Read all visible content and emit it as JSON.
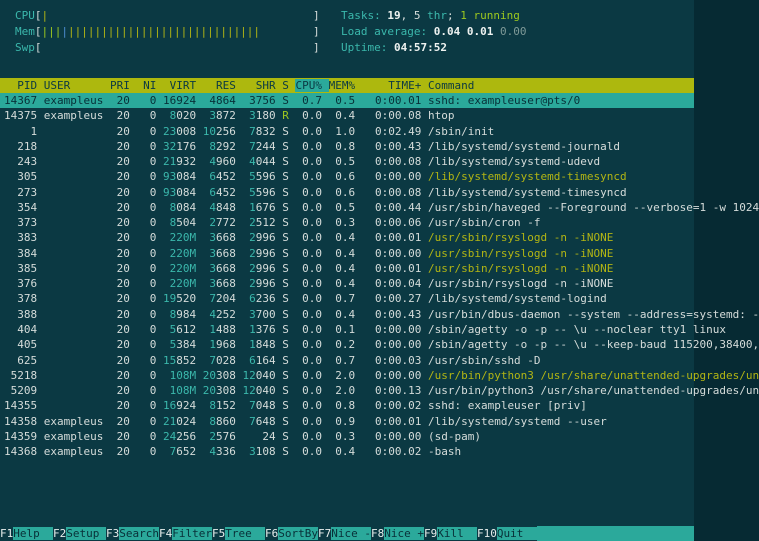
{
  "colors": {
    "background": "#0b3943",
    "foreground": "#d5dcda",
    "accent_cyan": "#3bb8ac",
    "selection_bg": "#2ba99b",
    "header_bg": "#adb80e",
    "thread_yellow": "#b2b514",
    "running_green": "#9dc81f",
    "buffer_blue": "#4d8fd1"
  },
  "meter_width": 41,
  "meters": [
    {
      "name": "CPU",
      "pipes": [
        {
          "color": "yellow",
          "n": 1
        }
      ]
    },
    {
      "name": "Mem",
      "pipes": [
        {
          "color": "green",
          "n": 3
        },
        {
          "color": "blue",
          "n": 1
        },
        {
          "color": "yellow",
          "n": 29
        }
      ]
    },
    {
      "name": "Swp",
      "pipes": []
    }
  ],
  "stats": [
    {
      "id": "tasks",
      "segments": [
        [
          "cyan",
          "Tasks: "
        ],
        [
          "b",
          "19"
        ],
        [
          "fg",
          ", "
        ],
        [
          "fg",
          "5"
        ],
        [
          "cyan",
          " thr"
        ],
        [
          "fg",
          "; "
        ],
        [
          "green",
          "1 running"
        ]
      ]
    },
    {
      "id": "load-average",
      "segments": [
        [
          "cyan",
          "Load average: "
        ],
        [
          "b",
          "0.04"
        ],
        [
          "fg",
          " "
        ],
        [
          "b",
          "0.01"
        ],
        [
          "fg",
          " "
        ],
        [
          "dim",
          "0.00"
        ]
      ]
    },
    {
      "id": "uptime",
      "segments": [
        [
          "cyan",
          "Uptime: "
        ],
        [
          "b",
          "04:57:52"
        ]
      ]
    }
  ],
  "table": {
    "columns": [
      "PID",
      "USER",
      "PRI",
      "NI",
      "VIRT",
      "RES",
      "SHR",
      "S",
      "CPU%",
      "MEM%",
      "TIME+",
      "Command"
    ],
    "sort_column": "CPU%",
    "rows": [
      {
        "pid": "14367",
        "user": "exampleus",
        "pri": "20",
        "ni": "0",
        "virt": "16924",
        "res": "4864",
        "shr": "3756",
        "s": "S",
        "cpu": "0.7",
        "mem": "0.5",
        "time": "0:00.01",
        "cmd": "sshd: exampleuser@pts/0",
        "thread": false,
        "selected": true
      },
      {
        "pid": "14375",
        "user": "exampleus",
        "pri": "20",
        "ni": "0",
        "virt": "8020",
        "res": "3872",
        "shr": "3180",
        "s": "R",
        "cpu": "0.0",
        "mem": "0.4",
        "time": "0:00.08",
        "cmd": "htop",
        "thread": false,
        "selected": false
      },
      {
        "pid": "1",
        "user": "",
        "pri": "20",
        "ni": "0",
        "virt": "23008",
        "res": "10256",
        "shr": "7832",
        "s": "S",
        "cpu": "0.0",
        "mem": "1.0",
        "time": "0:02.49",
        "cmd": "/sbin/init",
        "thread": false,
        "selected": false
      },
      {
        "pid": "218",
        "user": "",
        "pri": "20",
        "ni": "0",
        "virt": "32176",
        "res": "8292",
        "shr": "7244",
        "s": "S",
        "cpu": "0.0",
        "mem": "0.8",
        "time": "0:00.43",
        "cmd": "/lib/systemd/systemd-journald",
        "thread": false,
        "selected": false
      },
      {
        "pid": "243",
        "user": "",
        "pri": "20",
        "ni": "0",
        "virt": "21932",
        "res": "4960",
        "shr": "4044",
        "s": "S",
        "cpu": "0.0",
        "mem": "0.5",
        "time": "0:00.08",
        "cmd": "/lib/systemd/systemd-udevd",
        "thread": false,
        "selected": false
      },
      {
        "pid": "305",
        "user": "",
        "pri": "20",
        "ni": "0",
        "virt": "93084",
        "res": "6452",
        "shr": "5596",
        "s": "S",
        "cpu": "0.0",
        "mem": "0.6",
        "time": "0:00.00",
        "cmd": "/lib/systemd/systemd-timesyncd",
        "thread": true,
        "selected": false
      },
      {
        "pid": "273",
        "user": "",
        "pri": "20",
        "ni": "0",
        "virt": "93084",
        "res": "6452",
        "shr": "5596",
        "s": "S",
        "cpu": "0.0",
        "mem": "0.6",
        "time": "0:00.08",
        "cmd": "/lib/systemd/systemd-timesyncd",
        "thread": false,
        "selected": false
      },
      {
        "pid": "354",
        "user": "",
        "pri": "20",
        "ni": "0",
        "virt": "8084",
        "res": "4848",
        "shr": "1676",
        "s": "S",
        "cpu": "0.0",
        "mem": "0.5",
        "time": "0:00.44",
        "cmd": "/usr/sbin/haveged --Foreground --verbose=1 -w 1024",
        "thread": false,
        "selected": false
      },
      {
        "pid": "373",
        "user": "",
        "pri": "20",
        "ni": "0",
        "virt": "8504",
        "res": "2772",
        "shr": "2512",
        "s": "S",
        "cpu": "0.0",
        "mem": "0.3",
        "time": "0:00.06",
        "cmd": "/usr/sbin/cron -f",
        "thread": false,
        "selected": false
      },
      {
        "pid": "383",
        "user": "",
        "pri": "20",
        "ni": "0",
        "virt": "220M",
        "res": "3668",
        "shr": "2996",
        "s": "S",
        "cpu": "0.0",
        "mem": "0.4",
        "time": "0:00.01",
        "cmd": "/usr/sbin/rsyslogd -n -iNONE",
        "thread": true,
        "selected": false
      },
      {
        "pid": "384",
        "user": "",
        "pri": "20",
        "ni": "0",
        "virt": "220M",
        "res": "3668",
        "shr": "2996",
        "s": "S",
        "cpu": "0.0",
        "mem": "0.4",
        "time": "0:00.00",
        "cmd": "/usr/sbin/rsyslogd -n -iNONE",
        "thread": true,
        "selected": false
      },
      {
        "pid": "385",
        "user": "",
        "pri": "20",
        "ni": "0",
        "virt": "220M",
        "res": "3668",
        "shr": "2996",
        "s": "S",
        "cpu": "0.0",
        "mem": "0.4",
        "time": "0:00.01",
        "cmd": "/usr/sbin/rsyslogd -n -iNONE",
        "thread": true,
        "selected": false
      },
      {
        "pid": "376",
        "user": "",
        "pri": "20",
        "ni": "0",
        "virt": "220M",
        "res": "3668",
        "shr": "2996",
        "s": "S",
        "cpu": "0.0",
        "mem": "0.4",
        "time": "0:00.04",
        "cmd": "/usr/sbin/rsyslogd -n -iNONE",
        "thread": false,
        "selected": false
      },
      {
        "pid": "378",
        "user": "",
        "pri": "20",
        "ni": "0",
        "virt": "19520",
        "res": "7204",
        "shr": "6236",
        "s": "S",
        "cpu": "0.0",
        "mem": "0.7",
        "time": "0:00.27",
        "cmd": "/lib/systemd/systemd-logind",
        "thread": false,
        "selected": false
      },
      {
        "pid": "388",
        "user": "",
        "pri": "20",
        "ni": "0",
        "virt": "8984",
        "res": "4252",
        "shr": "3700",
        "s": "S",
        "cpu": "0.0",
        "mem": "0.4",
        "time": "0:00.43",
        "cmd": "/usr/bin/dbus-daemon --system --address=systemd: -",
        "thread": false,
        "selected": false
      },
      {
        "pid": "404",
        "user": "",
        "pri": "20",
        "ni": "0",
        "virt": "5612",
        "res": "1488",
        "shr": "1376",
        "s": "S",
        "cpu": "0.0",
        "mem": "0.1",
        "time": "0:00.00",
        "cmd": "/sbin/agetty -o -p -- \\u --noclear tty1 linux",
        "thread": false,
        "selected": false
      },
      {
        "pid": "405",
        "user": "",
        "pri": "20",
        "ni": "0",
        "virt": "5384",
        "res": "1968",
        "shr": "1848",
        "s": "S",
        "cpu": "0.0",
        "mem": "0.2",
        "time": "0:00.00",
        "cmd": "/sbin/agetty -o -p -- \\u --keep-baud 115200,38400,",
        "thread": false,
        "selected": false
      },
      {
        "pid": "625",
        "user": "",
        "pri": "20",
        "ni": "0",
        "virt": "15852",
        "res": "7028",
        "shr": "6164",
        "s": "S",
        "cpu": "0.0",
        "mem": "0.7",
        "time": "0:00.03",
        "cmd": "/usr/sbin/sshd -D",
        "thread": false,
        "selected": false
      },
      {
        "pid": "5218",
        "user": "",
        "pri": "20",
        "ni": "0",
        "virt": "108M",
        "res": "20308",
        "shr": "12040",
        "s": "S",
        "cpu": "0.0",
        "mem": "2.0",
        "time": "0:00.00",
        "cmd": "/usr/bin/python3 /usr/share/unattended-upgrades/un",
        "thread": true,
        "selected": false
      },
      {
        "pid": "5209",
        "user": "",
        "pri": "20",
        "ni": "0",
        "virt": "108M",
        "res": "20308",
        "shr": "12040",
        "s": "S",
        "cpu": "0.0",
        "mem": "2.0",
        "time": "0:00.13",
        "cmd": "/usr/bin/python3 /usr/share/unattended-upgrades/un",
        "thread": false,
        "selected": false
      },
      {
        "pid": "14355",
        "user": "",
        "pri": "20",
        "ni": "0",
        "virt": "16924",
        "res": "8152",
        "shr": "7048",
        "s": "S",
        "cpu": "0.0",
        "mem": "0.8",
        "time": "0:00.02",
        "cmd": "sshd: exampleuser [priv]",
        "thread": false,
        "selected": false
      },
      {
        "pid": "14358",
        "user": "exampleus",
        "pri": "20",
        "ni": "0",
        "virt": "21024",
        "res": "8860",
        "shr": "7648",
        "s": "S",
        "cpu": "0.0",
        "mem": "0.9",
        "time": "0:00.01",
        "cmd": "/lib/systemd/systemd --user",
        "thread": false,
        "selected": false
      },
      {
        "pid": "14359",
        "user": "exampleus",
        "pri": "20",
        "ni": "0",
        "virt": "24256",
        "res": "2576",
        "shr": "24",
        "s": "S",
        "cpu": "0.0",
        "mem": "0.3",
        "time": "0:00.00",
        "cmd": "(sd-pam)",
        "thread": false,
        "selected": false
      },
      {
        "pid": "14368",
        "user": "exampleus",
        "pri": "20",
        "ni": "0",
        "virt": "7652",
        "res": "4336",
        "shr": "3108",
        "s": "S",
        "cpu": "0.0",
        "mem": "0.4",
        "time": "0:00.02",
        "cmd": "-bash",
        "thread": false,
        "selected": false
      }
    ]
  },
  "fnbar": [
    {
      "key": "F1",
      "label": "Help"
    },
    {
      "key": "F2",
      "label": "Setup"
    },
    {
      "key": "F3",
      "label": "Search"
    },
    {
      "key": "F4",
      "label": "Filter"
    },
    {
      "key": "F5",
      "label": "Tree"
    },
    {
      "key": "F6",
      "label": "SortBy"
    },
    {
      "key": "F7",
      "label": "Nice -"
    },
    {
      "key": "F8",
      "label": "Nice +"
    },
    {
      "key": "F9",
      "label": "Kill"
    },
    {
      "key": "F10",
      "label": "Quit"
    }
  ]
}
